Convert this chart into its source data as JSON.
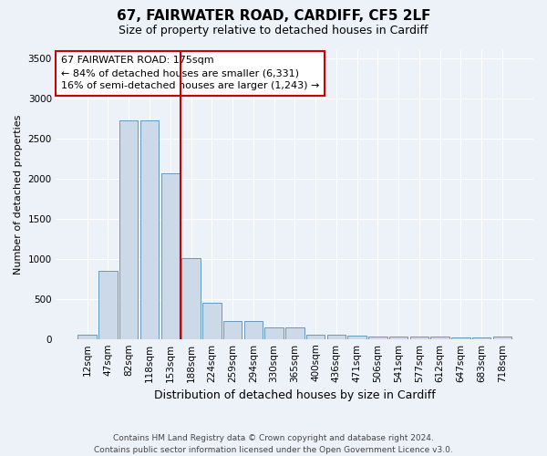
{
  "title": "67, FAIRWATER ROAD, CARDIFF, CF5 2LF",
  "subtitle": "Size of property relative to detached houses in Cardiff",
  "xlabel": "Distribution of detached houses by size in Cardiff",
  "ylabel": "Number of detached properties",
  "bar_color": "#ccd9e8",
  "bar_edge_color": "#6699bb",
  "categories": [
    "12sqm",
    "47sqm",
    "82sqm",
    "118sqm",
    "153sqm",
    "188sqm",
    "224sqm",
    "259sqm",
    "294sqm",
    "330sqm",
    "365sqm",
    "400sqm",
    "436sqm",
    "471sqm",
    "506sqm",
    "541sqm",
    "577sqm",
    "612sqm",
    "647sqm",
    "683sqm",
    "718sqm"
  ],
  "values": [
    50,
    850,
    2730,
    2730,
    2060,
    1010,
    450,
    220,
    220,
    140,
    140,
    50,
    55,
    45,
    35,
    30,
    25,
    25,
    20,
    20,
    30
  ],
  "vline_x": 4.5,
  "vline_color": "#cc0000",
  "annotation_text": "67 FAIRWATER ROAD: 175sqm\n← 84% of detached houses are smaller (6,331)\n16% of semi-detached houses are larger (1,243) →",
  "ylim": [
    0,
    3600
  ],
  "yticks": [
    0,
    500,
    1000,
    1500,
    2000,
    2500,
    3000,
    3500
  ],
  "background_color": "#edf2f8",
  "grid_color": "#ffffff",
  "footer": "Contains HM Land Registry data © Crown copyright and database right 2024.\nContains public sector information licensed under the Open Government Licence v3.0."
}
